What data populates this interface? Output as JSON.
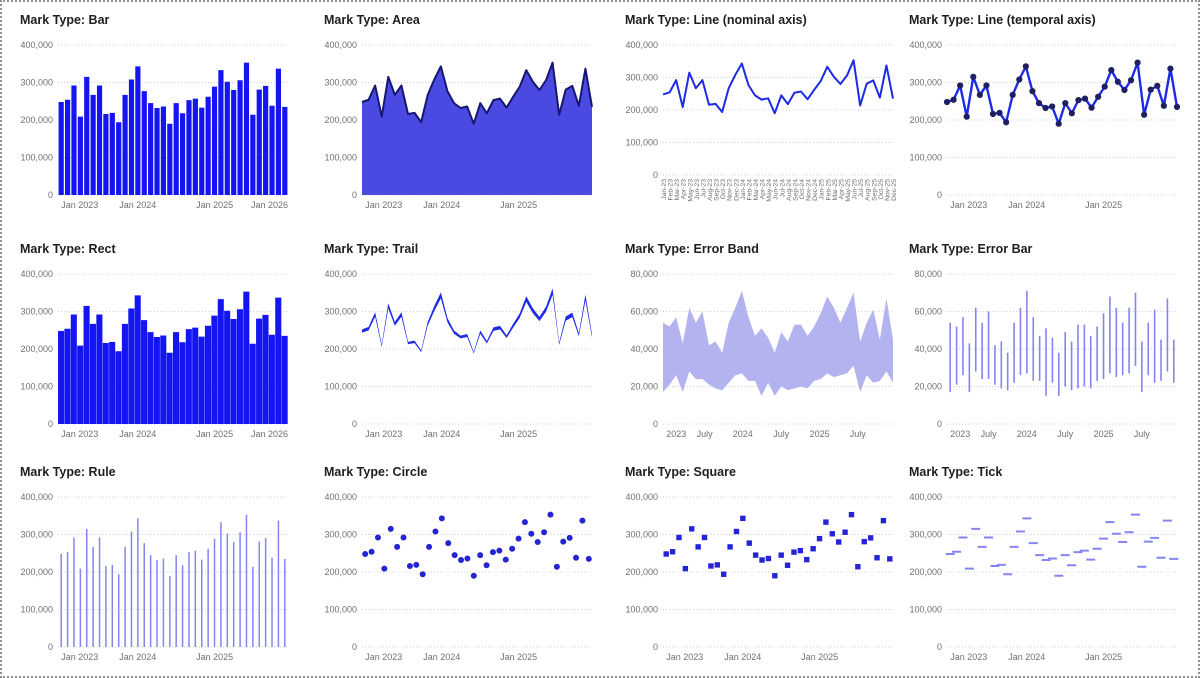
{
  "colors": {
    "bar_fill": "#1515f2",
    "area_fill": "#4a4ae3",
    "area_stroke": "#171770",
    "line_stroke": "#1d2be5",
    "point_fill": "#1f1f63",
    "band_fill": "#b3b3f0",
    "errorbar_stroke": "#8484f2",
    "rule_stroke": "#8484f2",
    "tick_stroke": "#8484f2",
    "circle_fill": "#2424d4",
    "square_fill": "#2424d4",
    "grid": "#d0d0d0",
    "axis_label": "#6f6f6f",
    "title": "#1e1e1e"
  },
  "chart_data": [
    {
      "type": "bar",
      "title": "Mark Type: Bar",
      "ylim": [
        0,
        400000
      ],
      "y_tick_labels": [
        "0",
        "100,000",
        "200,000",
        "300,000",
        "400,000"
      ],
      "x_axis_labels": [
        {
          "text": "Jan 2023",
          "f": 0.014
        },
        {
          "text": "Jan 2024",
          "f": 0.347
        },
        {
          "text": "Jan 2025",
          "f": 0.681
        },
        {
          "text": "Jan 2026",
          "f": 1.0
        }
      ],
      "values": [
        248000,
        254000,
        292000,
        209000,
        315000,
        267000,
        292000,
        216000,
        219000,
        194000,
        267000,
        308000,
        343000,
        277000,
        245000,
        232000,
        236000,
        190000,
        245000,
        218000,
        253000,
        257000,
        233000,
        262000,
        289000,
        333000,
        302000,
        280000,
        306000,
        353000,
        214000,
        281000,
        291000,
        238000,
        337000,
        235000
      ]
    },
    {
      "type": "area",
      "title": "Mark Type: Area",
      "ylim": [
        0,
        400000
      ],
      "y_tick_labels": [
        "0",
        "100,000",
        "200,000",
        "300,000",
        "400,000"
      ],
      "x_axis_labels": [
        {
          "text": "Jan 2023",
          "f": 0.014
        },
        {
          "text": "Jan 2024",
          "f": 0.347
        },
        {
          "text": "Jan 2025",
          "f": 0.681
        }
      ],
      "values": [
        248000,
        254000,
        292000,
        209000,
        315000,
        267000,
        292000,
        216000,
        219000,
        194000,
        267000,
        308000,
        343000,
        277000,
        245000,
        232000,
        236000,
        190000,
        245000,
        218000,
        253000,
        257000,
        233000,
        262000,
        289000,
        333000,
        302000,
        280000,
        306000,
        353000,
        214000,
        281000,
        291000,
        238000,
        337000,
        235000
      ]
    },
    {
      "type": "line",
      "title": "Mark Type: Line (nominal axis)",
      "ylim": [
        0,
        400000
      ],
      "y_tick_labels": [
        "0",
        "100,000",
        "200,000",
        "300,000",
        "400,000"
      ],
      "x_rotated": true,
      "categories": [
        "Jan-23",
        "Feb-23",
        "Mar-23",
        "Apr-23",
        "May-23",
        "Jun-23",
        "Jul-23",
        "Aug-23",
        "Sep-23",
        "Oct-23",
        "Nov-23",
        "Dec-23",
        "Jan-24",
        "Feb-24",
        "Mar-24",
        "Apr-24",
        "May-24",
        "Jun-24",
        "Jul-24",
        "Aug-24",
        "Sep-24",
        "Oct-24",
        "Nov-24",
        "Dec-24",
        "Jan-25",
        "Feb-25",
        "Mar-25",
        "Apr-25",
        "May-25",
        "Jun-25",
        "Jul-25",
        "Aug-25",
        "Sep-25",
        "Oct-25",
        "Nov-25",
        "Dec-25"
      ],
      "values": [
        248000,
        254000,
        292000,
        209000,
        315000,
        267000,
        292000,
        216000,
        219000,
        194000,
        267000,
        308000,
        343000,
        277000,
        245000,
        232000,
        236000,
        190000,
        245000,
        218000,
        253000,
        257000,
        233000,
        262000,
        289000,
        333000,
        302000,
        280000,
        306000,
        353000,
        214000,
        281000,
        291000,
        238000,
        337000,
        235000
      ]
    },
    {
      "type": "line_point",
      "title": "Mark Type: Line (temporal axis)",
      "ylim": [
        0,
        400000
      ],
      "y_tick_labels": [
        "0",
        "100,000",
        "200,000",
        "300,000",
        "400,000"
      ],
      "x_axis_labels": [
        {
          "text": "Jan 2023",
          "f": 0.014
        },
        {
          "text": "Jan 2024",
          "f": 0.347
        },
        {
          "text": "Jan 2025",
          "f": 0.681
        }
      ],
      "values": [
        248000,
        254000,
        292000,
        209000,
        315000,
        267000,
        292000,
        216000,
        219000,
        194000,
        267000,
        308000,
        343000,
        277000,
        245000,
        232000,
        236000,
        190000,
        245000,
        218000,
        253000,
        257000,
        233000,
        262000,
        289000,
        333000,
        302000,
        280000,
        306000,
        353000,
        214000,
        281000,
        291000,
        238000,
        337000,
        235000
      ]
    },
    {
      "type": "rect",
      "title": "Mark Type: Rect",
      "ylim": [
        0,
        400000
      ],
      "y_tick_labels": [
        "0",
        "100,000",
        "200,000",
        "300,000",
        "400,000"
      ],
      "x_axis_labels": [
        {
          "text": "Jan 2023",
          "f": 0.014
        },
        {
          "text": "Jan 2024",
          "f": 0.347
        },
        {
          "text": "Jan 2025",
          "f": 0.681
        },
        {
          "text": "Jan 2026",
          "f": 1.0
        }
      ],
      "values": [
        248000,
        254000,
        292000,
        209000,
        315000,
        267000,
        292000,
        216000,
        219000,
        194000,
        267000,
        308000,
        343000,
        277000,
        245000,
        232000,
        236000,
        190000,
        245000,
        218000,
        253000,
        257000,
        233000,
        262000,
        289000,
        333000,
        302000,
        280000,
        306000,
        353000,
        214000,
        281000,
        291000,
        238000,
        337000,
        235000
      ]
    },
    {
      "type": "trail",
      "title": "Mark Type: Trail",
      "ylim": [
        0,
        400000
      ],
      "y_tick_labels": [
        "0",
        "100,000",
        "200,000",
        "300,000",
        "400,000"
      ],
      "x_axis_labels": [
        {
          "text": "Jan 2023",
          "f": 0.014
        },
        {
          "text": "Jan 2024",
          "f": 0.347
        },
        {
          "text": "Jan 2025",
          "f": 0.681
        }
      ],
      "values": [
        248000,
        254000,
        292000,
        209000,
        315000,
        267000,
        292000,
        216000,
        219000,
        194000,
        267000,
        308000,
        343000,
        277000,
        245000,
        232000,
        236000,
        190000,
        245000,
        218000,
        253000,
        257000,
        233000,
        262000,
        289000,
        333000,
        302000,
        280000,
        306000,
        353000,
        214000,
        281000,
        291000,
        238000,
        337000,
        235000
      ]
    },
    {
      "type": "errorband",
      "title": "Mark Type: Error Band",
      "ylim": [
        0,
        80000
      ],
      "y_tick_labels": [
        "0",
        "20,000",
        "40,000",
        "60,000",
        "80,000"
      ],
      "x_axis_labels": [
        {
          "text": "2023",
          "f": 0.014
        },
        {
          "text": "July",
          "f": 0.181
        },
        {
          "text": "2024",
          "f": 0.347
        },
        {
          "text": "July",
          "f": 0.514
        },
        {
          "text": "2025",
          "f": 0.681
        },
        {
          "text": "July",
          "f": 0.847
        }
      ],
      "low": [
        17000,
        21000,
        26000,
        17000,
        28000,
        24000,
        24000,
        21000,
        19000,
        18000,
        22000,
        26000,
        27000,
        23000,
        23000,
        15000,
        22000,
        15000,
        20000,
        18000,
        19000,
        20000,
        19000,
        23000,
        24000,
        27000,
        25000,
        26000,
        27000,
        31000,
        17000,
        26000,
        22000,
        23000,
        28000,
        22000
      ],
      "high": [
        54000,
        52000,
        57000,
        43000,
        62000,
        54000,
        60000,
        42000,
        44000,
        38000,
        54000,
        62000,
        71000,
        57000,
        47000,
        51000,
        46000,
        38000,
        49000,
        44000,
        53000,
        53000,
        47000,
        52000,
        59000,
        68000,
        62000,
        54000,
        62000,
        70000,
        44000,
        54000,
        61000,
        45000,
        67000,
        45000
      ]
    },
    {
      "type": "errorbar",
      "title": "Mark Type: Error Bar",
      "ylim": [
        0,
        80000
      ],
      "y_tick_labels": [
        "0",
        "20,000",
        "40,000",
        "60,000",
        "80,000"
      ],
      "x_axis_labels": [
        {
          "text": "2023",
          "f": 0.014
        },
        {
          "text": "July",
          "f": 0.181
        },
        {
          "text": "2024",
          "f": 0.347
        },
        {
          "text": "July",
          "f": 0.514
        },
        {
          "text": "2025",
          "f": 0.681
        },
        {
          "text": "July",
          "f": 0.847
        }
      ],
      "low": [
        17000,
        21000,
        26000,
        17000,
        28000,
        24000,
        24000,
        21000,
        19000,
        18000,
        22000,
        26000,
        27000,
        23000,
        23000,
        15000,
        22000,
        15000,
        20000,
        18000,
        19000,
        20000,
        19000,
        23000,
        24000,
        27000,
        25000,
        26000,
        27000,
        31000,
        17000,
        26000,
        22000,
        23000,
        28000,
        22000
      ],
      "high": [
        54000,
        52000,
        57000,
        43000,
        62000,
        54000,
        60000,
        42000,
        44000,
        38000,
        54000,
        62000,
        71000,
        57000,
        47000,
        51000,
        46000,
        38000,
        49000,
        44000,
        53000,
        53000,
        47000,
        52000,
        59000,
        68000,
        62000,
        54000,
        62000,
        70000,
        44000,
        54000,
        61000,
        45000,
        67000,
        45000
      ]
    },
    {
      "type": "rule",
      "title": "Mark Type: Rule",
      "ylim": [
        0,
        400000
      ],
      "y_tick_labels": [
        "0",
        "100,000",
        "200,000",
        "300,000",
        "400,000"
      ],
      "x_axis_labels": [
        {
          "text": "Jan 2023",
          "f": 0.014
        },
        {
          "text": "Jan 2024",
          "f": 0.347
        },
        {
          "text": "Jan 2025",
          "f": 0.681
        }
      ],
      "values": [
        248000,
        254000,
        292000,
        209000,
        315000,
        267000,
        292000,
        216000,
        219000,
        194000,
        267000,
        308000,
        343000,
        277000,
        245000,
        232000,
        236000,
        190000,
        245000,
        218000,
        253000,
        257000,
        233000,
        262000,
        289000,
        333000,
        302000,
        280000,
        306000,
        353000,
        214000,
        281000,
        291000,
        238000,
        337000,
        235000
      ]
    },
    {
      "type": "circle",
      "title": "Mark Type: Circle",
      "ylim": [
        0,
        400000
      ],
      "y_tick_labels": [
        "0",
        "100,000",
        "200,000",
        "300,000",
        "400,000"
      ],
      "x_axis_labels": [
        {
          "text": "Jan 2023",
          "f": 0.014
        },
        {
          "text": "Jan 2024",
          "f": 0.347
        },
        {
          "text": "Jan 2025",
          "f": 0.681
        }
      ],
      "values": [
        248000,
        254000,
        292000,
        209000,
        315000,
        267000,
        292000,
        216000,
        219000,
        194000,
        267000,
        308000,
        343000,
        277000,
        245000,
        232000,
        236000,
        190000,
        245000,
        218000,
        253000,
        257000,
        233000,
        262000,
        289000,
        333000,
        302000,
        280000,
        306000,
        353000,
        214000,
        281000,
        291000,
        238000,
        337000,
        235000
      ]
    },
    {
      "type": "square",
      "title": "Mark Type: Square",
      "ylim": [
        0,
        400000
      ],
      "y_tick_labels": [
        "0",
        "100,000",
        "200,000",
        "300,000",
        "400,000"
      ],
      "x_axis_labels": [
        {
          "text": "Jan 2023",
          "f": 0.014
        },
        {
          "text": "Jan 2024",
          "f": 0.347
        },
        {
          "text": "Jan 2025",
          "f": 0.681
        }
      ],
      "values": [
        248000,
        254000,
        292000,
        209000,
        315000,
        267000,
        292000,
        216000,
        219000,
        194000,
        267000,
        308000,
        343000,
        277000,
        245000,
        232000,
        236000,
        190000,
        245000,
        218000,
        253000,
        257000,
        233000,
        262000,
        289000,
        333000,
        302000,
        280000,
        306000,
        353000,
        214000,
        281000,
        291000,
        238000,
        337000,
        235000
      ]
    },
    {
      "type": "tick",
      "title": "Mark Type: Tick",
      "ylim": [
        0,
        400000
      ],
      "y_tick_labels": [
        "0",
        "100,000",
        "200,000",
        "300,000",
        "400,000"
      ],
      "x_axis_labels": [
        {
          "text": "Jan 2023",
          "f": 0.014
        },
        {
          "text": "Jan 2024",
          "f": 0.347
        },
        {
          "text": "Jan 2025",
          "f": 0.681
        }
      ],
      "values": [
        248000,
        254000,
        292000,
        209000,
        315000,
        267000,
        292000,
        216000,
        219000,
        194000,
        267000,
        308000,
        343000,
        277000,
        245000,
        232000,
        236000,
        190000,
        245000,
        218000,
        253000,
        257000,
        233000,
        262000,
        289000,
        333000,
        302000,
        280000,
        306000,
        353000,
        214000,
        281000,
        291000,
        238000,
        337000,
        235000
      ]
    }
  ]
}
